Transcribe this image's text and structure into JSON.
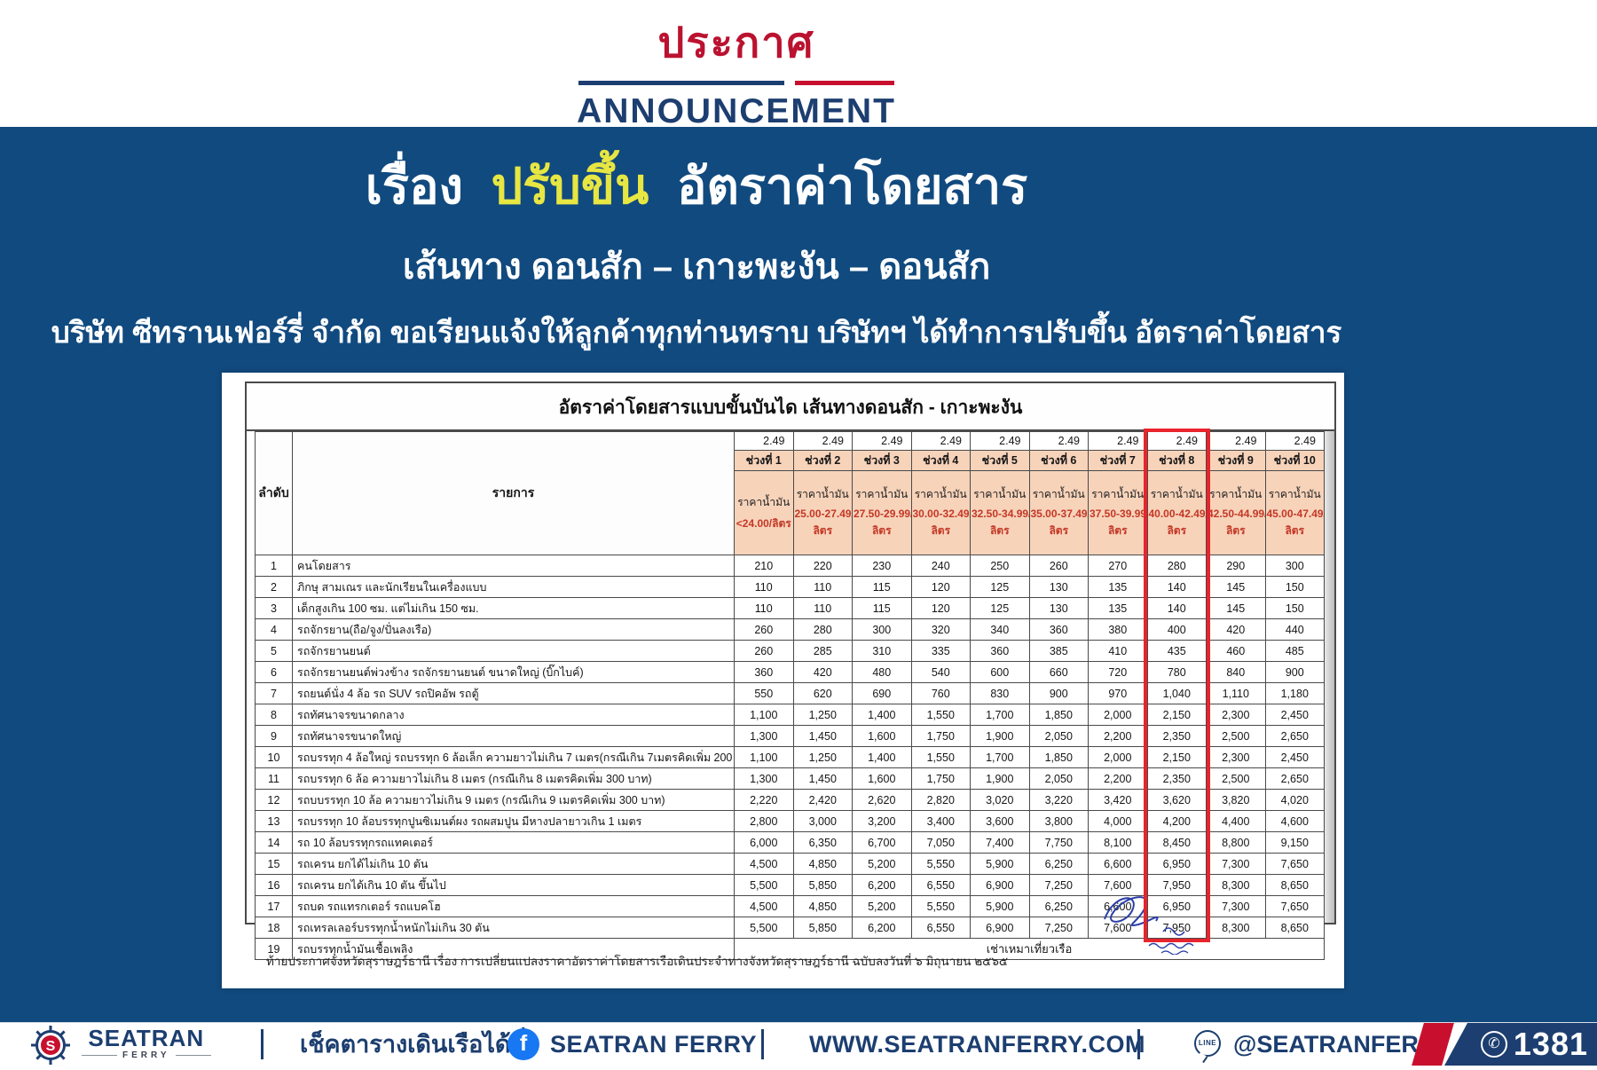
{
  "header": {
    "title_thai": "ประกาศ",
    "title_en": "ANNOUNCEMENT"
  },
  "announcement": {
    "subject_prefix": "เรื่อง",
    "subject_highlight": "ปรับขึ้น",
    "subject_suffix": "อัตราค่าโดยสาร",
    "route": "เส้นทาง ดอนสัก – เกาะพะงัน – ดอนสัก",
    "detail": "บริษัท ซีทรานเฟอร์รี่ จำกัด ขอเรียนแจ้งให้ลูกค้าทุกท่านทราบ บริษัทฯ ได้ทำการปรับขึ้น อัตราค่าโดยสาร"
  },
  "document": {
    "table_title": "อัตราค่าโดยสารแบบขั้นบันได เส้นทางดอนสัก - เกาะพะงัน",
    "col_no_header": "ลำดับ",
    "col_item_header": "รายการ",
    "rate_header": "2.49",
    "highlighted_period": 8,
    "periods": [
      {
        "name": "ช่วงที่ 1",
        "fuel_label": "ราคาน้ำมัน",
        "fuel_range": "<24.00/ลิตร",
        "fuel_unit": ""
      },
      {
        "name": "ช่วงที่ 2",
        "fuel_label": "ราคาน้ำมัน",
        "fuel_range": "25.00-27.49/",
        "fuel_unit": "ลิตร"
      },
      {
        "name": "ช่วงที่ 3",
        "fuel_label": "ราคาน้ำมัน",
        "fuel_range": "27.50-29.99/",
        "fuel_unit": "ลิตร"
      },
      {
        "name": "ช่วงที่ 4",
        "fuel_label": "ราคาน้ำมัน",
        "fuel_range": "30.00-32.49/",
        "fuel_unit": "ลิตร"
      },
      {
        "name": "ช่วงที่ 5",
        "fuel_label": "ราคาน้ำมัน",
        "fuel_range": "32.50-34.99/",
        "fuel_unit": "ลิตร"
      },
      {
        "name": "ช่วงที่ 6",
        "fuel_label": "ราคาน้ำมัน",
        "fuel_range": "35.00-37.49/",
        "fuel_unit": "ลิตร"
      },
      {
        "name": "ช่วงที่ 7",
        "fuel_label": "ราคาน้ำมัน",
        "fuel_range": "37.50-39.99/",
        "fuel_unit": "ลิตร"
      },
      {
        "name": "ช่วงที่ 8",
        "fuel_label": "ราคาน้ำมัน",
        "fuel_range": "40.00-42.49/",
        "fuel_unit": "ลิตร"
      },
      {
        "name": "ช่วงที่ 9",
        "fuel_label": "ราคาน้ำมัน",
        "fuel_range": "42.50-44.99/",
        "fuel_unit": "ลิตร"
      },
      {
        "name": "ช่วงที่ 10",
        "fuel_label": "ราคาน้ำมัน",
        "fuel_range": "45.00-47.49/",
        "fuel_unit": "ลิตร"
      }
    ],
    "rows": [
      {
        "no": "1",
        "item": "คนโดยสาร",
        "fares": [
          "210",
          "220",
          "230",
          "240",
          "250",
          "260",
          "270",
          "280",
          "290",
          "300"
        ]
      },
      {
        "no": "2",
        "item": "ภิกษุ สามเณร และนักเรียนในเครื่องแบบ",
        "fares": [
          "110",
          "110",
          "115",
          "120",
          "125",
          "130",
          "135",
          "140",
          "145",
          "150"
        ]
      },
      {
        "no": "3",
        "item": "เด็กสูงเกิน 100 ซม. แต่ไม่เกิน 150 ซม.",
        "fares": [
          "110",
          "110",
          "115",
          "120",
          "125",
          "130",
          "135",
          "140",
          "145",
          "150"
        ]
      },
      {
        "no": "4",
        "item": "รถจักรยาน(ถือ/จูง/ปั่นลงเรือ)",
        "fares": [
          "260",
          "280",
          "300",
          "320",
          "340",
          "360",
          "380",
          "400",
          "420",
          "440"
        ]
      },
      {
        "no": "5",
        "item": "รถจักรยานยนต์",
        "fares": [
          "260",
          "285",
          "310",
          "335",
          "360",
          "385",
          "410",
          "435",
          "460",
          "485"
        ]
      },
      {
        "no": "6",
        "item": "รถจักรยานยนต์พ่วงข้าง รถจักรยานยนต์ ขนาดใหญ่ (บิ๊กไบค์)",
        "fares": [
          "360",
          "420",
          "480",
          "540",
          "600",
          "660",
          "720",
          "780",
          "840",
          "900"
        ]
      },
      {
        "no": "7",
        "item": "รถยนต์นั่ง 4 ล้อ รถ SUV รถปิคอัพ รถตู้",
        "fares": [
          "550",
          "620",
          "690",
          "760",
          "830",
          "900",
          "970",
          "1,040",
          "1,110",
          "1,180"
        ]
      },
      {
        "no": "8",
        "item": "รถทัศนาจรขนาดกลาง",
        "fares": [
          "1,100",
          "1,250",
          "1,400",
          "1,550",
          "1,700",
          "1,850",
          "2,000",
          "2,150",
          "2,300",
          "2,450"
        ]
      },
      {
        "no": "9",
        "item": "รถทัศนาจรขนาดใหญ่",
        "fares": [
          "1,300",
          "1,450",
          "1,600",
          "1,750",
          "1,900",
          "2,050",
          "2,200",
          "2,350",
          "2,500",
          "2,650"
        ]
      },
      {
        "no": "10",
        "item": "รถบรรทุก 4 ล้อใหญ่ รถบรรทุก 6 ล้อเล็ก ความยาวไม่เกิน 7 เมตร(กรณีเกิน 7เมตรคิดเพิ่ม 200 บาท)",
        "fares": [
          "1,100",
          "1,250",
          "1,400",
          "1,550",
          "1,700",
          "1,850",
          "2,000",
          "2,150",
          "2,300",
          "2,450"
        ]
      },
      {
        "no": "11",
        "item": "รถบรรทุก 6 ล้อ ความยาวไม่เกิน 8 เมตร (กรณีเกิน 8 เมตรคิดเพิ่ม 300 บาท)",
        "fares": [
          "1,300",
          "1,450",
          "1,600",
          "1,750",
          "1,900",
          "2,050",
          "2,200",
          "2,350",
          "2,500",
          "2,650"
        ]
      },
      {
        "no": "12",
        "item": "รถบบรรทุก 10 ล้อ ความยาวไม่เกิน 9 เมตร (กรณีเกิน 9 เมตรคิดเพิ่ม 300 บาท)",
        "fares": [
          "2,220",
          "2,420",
          "2,620",
          "2,820",
          "3,020",
          "3,220",
          "3,420",
          "3,620",
          "3,820",
          "4,020"
        ]
      },
      {
        "no": "13",
        "item": "รถบรรทุก 10 ล้อบรรทุกปูนซิเมนต์ผง รถผสมปูน มีหางปลายาวเกิน 1 เมตร",
        "fares": [
          "2,800",
          "3,000",
          "3,200",
          "3,400",
          "3,600",
          "3,800",
          "4,000",
          "4,200",
          "4,400",
          "4,600"
        ]
      },
      {
        "no": "14",
        "item": "รถ 10 ล้อบรรทุกรถแทคเตอร์",
        "fares": [
          "6,000",
          "6,350",
          "6,700",
          "7,050",
          "7,400",
          "7,750",
          "8,100",
          "8,450",
          "8,800",
          "9,150"
        ]
      },
      {
        "no": "15",
        "item": "รถเครน ยกได้ไม่เกิน 10 ตัน",
        "fares": [
          "4,500",
          "4,850",
          "5,200",
          "5,550",
          "5,900",
          "6,250",
          "6,600",
          "6,950",
          "7,300",
          "7,650"
        ]
      },
      {
        "no": "16",
        "item": "รถเครน ยกได้เกิน 10 ตัน ขึ้นไป",
        "fares": [
          "5,500",
          "5,850",
          "6,200",
          "6,550",
          "6,900",
          "7,250",
          "7,600",
          "7,950",
          "8,300",
          "8,650"
        ]
      },
      {
        "no": "17",
        "item": "รถบด รถแทรกเตอร์ รถแบคโฮ",
        "fares": [
          "4,500",
          "4,850",
          "5,200",
          "5,550",
          "5,900",
          "6,250",
          "6,600",
          "6,950",
          "7,300",
          "7,650"
        ]
      },
      {
        "no": "18",
        "item": "รถเทรลเลอร์บรรทุกน้ำหนักไม่เกิน 30 ตัน",
        "fares": [
          "5,500",
          "5,850",
          "6,200",
          "6,550",
          "6,900",
          "7,250",
          "7,600",
          "7,950",
          "8,300",
          "8,650"
        ]
      },
      {
        "no": "19",
        "item": "รถบรรทุกน้ำมันเชื้อเพลิง",
        "charter": "เช่าเหมาเที่ยวเรือ"
      }
    ],
    "footnote": "ท้ายประกาศจังหวัดสุราษฎร์ธานี เรื่อง การเปลี่ยนแปลงราคาอัตราค่าโดยสารเรือเดินประจำทางจังหวัดสุราษฎร์ธานี ฉบับลงวันที่ ๖ มิถุนายน ๒๕๖๕"
  },
  "footer": {
    "logo_brand": "SEATRAN",
    "logo_sub": "FERRY",
    "schedule_label": "เช็คตารางเดินเรือได้ที่",
    "facebook_icon_letter": "f",
    "facebook_name": "SEATRAN FERRY",
    "website": "WWW.SEATRANFERRY.COM",
    "line_badge": "LINE",
    "line_name": "@SEATRANFERRY",
    "phone_icon": "✆",
    "phone_number": "1381"
  },
  "colors": {
    "navy_background": "#114a7f",
    "navy_text": "#1c3e70",
    "red_accent": "#c8102e",
    "yellow_highlight": "#e7e642",
    "table_header_peach": "#f7d3ba",
    "table_red_text": "#c43826",
    "highlight_box_red": "#e8242c",
    "facebook_blue": "#1877f2"
  }
}
